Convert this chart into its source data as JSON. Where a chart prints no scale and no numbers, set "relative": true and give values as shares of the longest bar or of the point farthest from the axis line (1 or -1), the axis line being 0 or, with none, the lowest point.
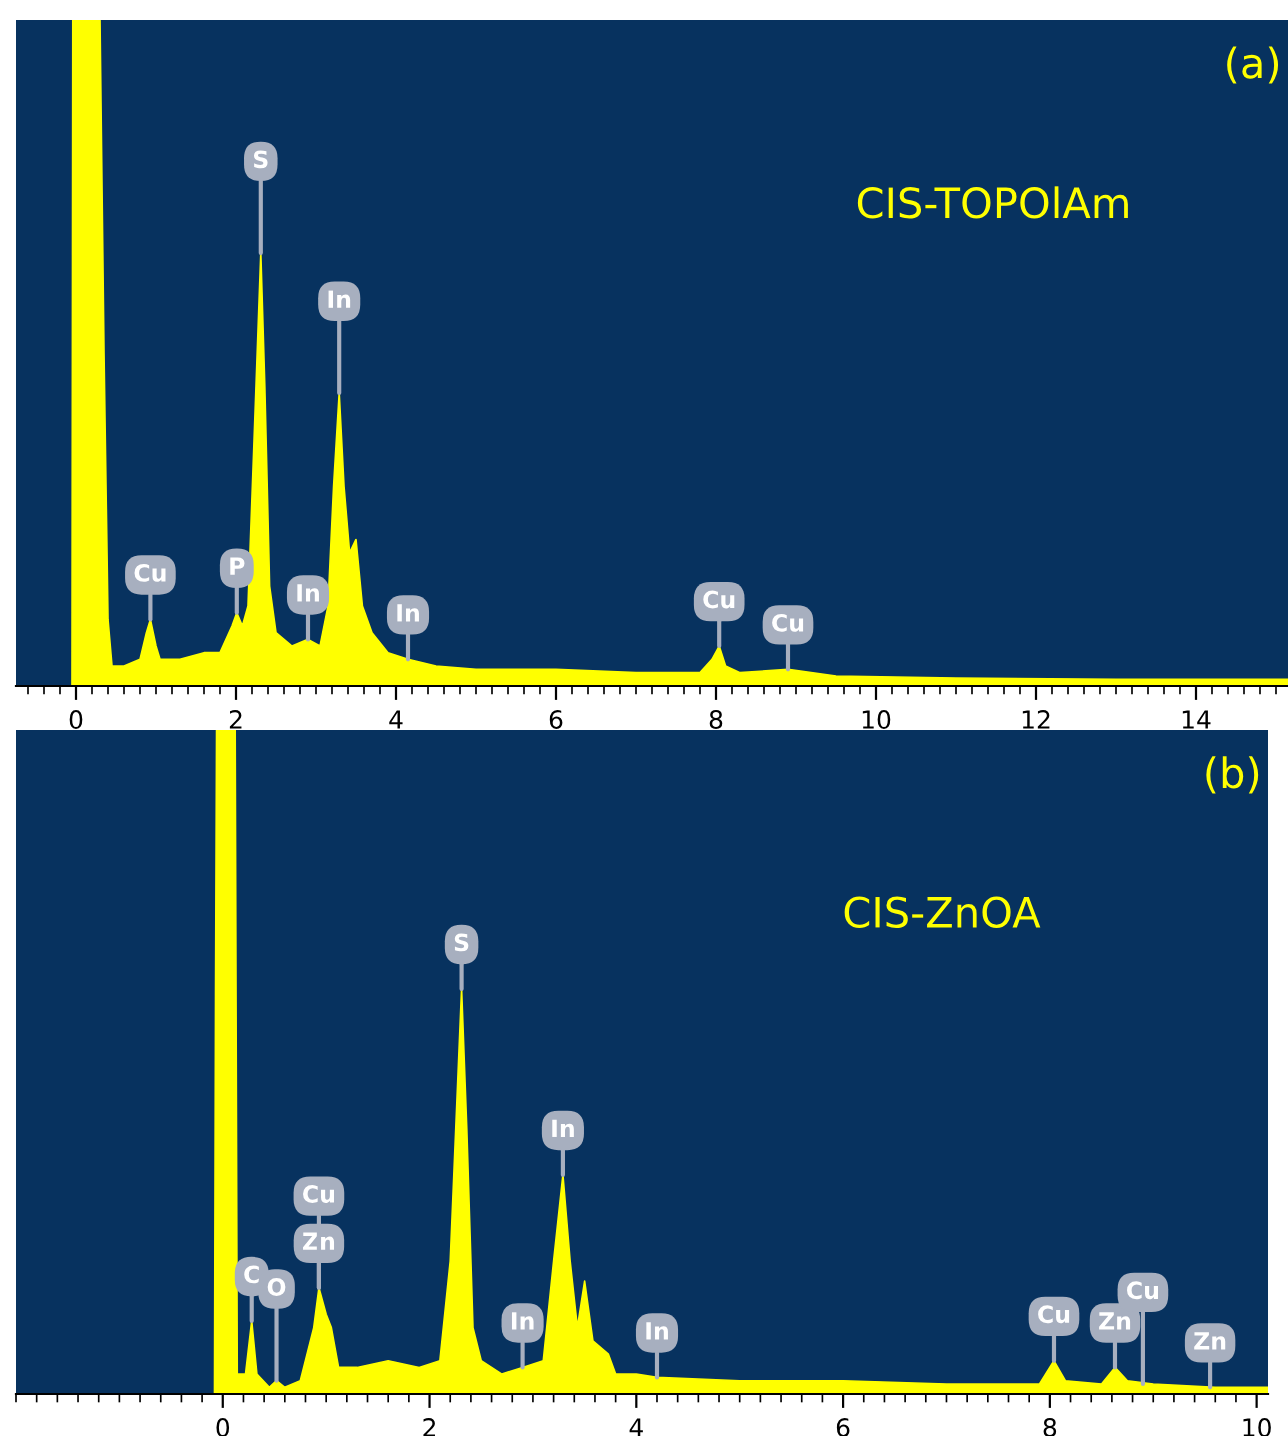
{
  "chart_data": [
    {
      "type": "area",
      "relative": true,
      "color": "#ffff00",
      "xlim": [
        -0.75,
        15.15
      ],
      "xticks": [
        0,
        2,
        4,
        6,
        8,
        10,
        12,
        14
      ],
      "tick_labels": "x",
      "grid": false,
      "legend": false,
      "x": [
        -0.05,
        -0.04,
        0.3,
        0.35,
        0.4,
        0.45,
        0.6,
        0.8,
        0.88,
        0.93,
        1.0,
        1.05,
        1.3,
        1.6,
        1.8,
        1.95,
        2.01,
        2.08,
        2.15,
        2.22,
        2.31,
        2.36,
        2.42,
        2.5,
        2.7,
        2.9,
        3.05,
        3.15,
        3.22,
        3.29,
        3.35,
        3.42,
        3.5,
        3.58,
        3.7,
        3.9,
        4.15,
        4.5,
        5,
        6,
        7,
        7.8,
        7.95,
        8.04,
        8.12,
        8.3,
        8.9,
        9.5,
        11,
        13,
        15.15
      ],
      "values": [
        0,
        1,
        1,
        0.5,
        0.1,
        0.03,
        0.03,
        0.04,
        0.08,
        0.1,
        0.06,
        0.04,
        0.04,
        0.05,
        0.05,
        0.09,
        0.11,
        0.09,
        0.12,
        0.35,
        0.65,
        0.45,
        0.15,
        0.08,
        0.06,
        0.07,
        0.06,
        0.12,
        0.3,
        0.44,
        0.3,
        0.2,
        0.22,
        0.12,
        0.08,
        0.05,
        0.04,
        0.03,
        0.025,
        0.025,
        0.02,
        0.02,
        0.04,
        0.06,
        0.03,
        0.02,
        0.025,
        0.015,
        0.012,
        0.01,
        0.01
      ],
      "annotations": [
        "(a)",
        "CIS-TOPOlAm",
        {
          "text": "Cu",
          "x": 0.93,
          "y": 0.1
        },
        {
          "text": "P",
          "x": 2.01,
          "y": 0.11
        },
        {
          "text": "S",
          "x": 2.31,
          "y": 0.65
        },
        {
          "text": "In",
          "x": 2.9,
          "y": 0.07
        },
        {
          "text": "In",
          "x": 3.29,
          "y": 0.44
        },
        {
          "text": "In",
          "x": 4.15,
          "y": 0.04
        },
        {
          "text": "Cu",
          "x": 8.04,
          "y": 0.06
        },
        {
          "text": "Cu",
          "x": 8.9,
          "y": 0.025
        }
      ]
    },
    {
      "type": "area",
      "relative": true,
      "color": "#ffff00",
      "xlim": [
        -2.0,
        10.11
      ],
      "xticks": [
        0,
        2,
        4,
        6,
        8,
        10
      ],
      "tick_labels": "x",
      "grid": false,
      "legend": false,
      "x": [
        -0.08,
        -0.07,
        -0.06,
        0.12,
        0.14,
        0.22,
        0.28,
        0.33,
        0.45,
        0.52,
        0.6,
        0.75,
        0.88,
        0.93,
        1.0,
        1.05,
        1.12,
        1.3,
        1.6,
        1.9,
        2.1,
        2.2,
        2.31,
        2.36,
        2.42,
        2.5,
        2.7,
        2.9,
        3.1,
        3.2,
        3.29,
        3.36,
        3.43,
        3.5,
        3.58,
        3.73,
        3.8,
        4.0,
        4.2,
        5,
        6,
        7,
        7.9,
        8.04,
        8.15,
        8.5,
        8.63,
        8.75,
        9,
        9.6,
        10.11
      ],
      "values": [
        0,
        0.6,
        1,
        1,
        0.03,
        0.03,
        0.11,
        0.03,
        0.01,
        0.02,
        0.01,
        0.02,
        0.1,
        0.16,
        0.12,
        0.1,
        0.04,
        0.04,
        0.05,
        0.04,
        0.05,
        0.2,
        0.61,
        0.4,
        0.1,
        0.05,
        0.03,
        0.04,
        0.05,
        0.2,
        0.33,
        0.2,
        0.1,
        0.17,
        0.08,
        0.06,
        0.03,
        0.03,
        0.025,
        0.02,
        0.02,
        0.015,
        0.015,
        0.05,
        0.02,
        0.015,
        0.04,
        0.02,
        0.015,
        0.01,
        0.01
      ],
      "annotations": [
        "(b)",
        "CIS-ZnOA",
        {
          "text": "C",
          "x": 0.28,
          "y": 0.11
        },
        {
          "text": "O",
          "x": 0.52,
          "y": 0.02
        },
        {
          "text": "Zn",
          "x": 0.93,
          "y": 0.16
        },
        {
          "text": "Cu",
          "x": 0.93,
          "y": 0.16
        },
        {
          "text": "S",
          "x": 2.31,
          "y": 0.61
        },
        {
          "text": "In",
          "x": 2.9,
          "y": 0.04
        },
        {
          "text": "In",
          "x": 3.29,
          "y": 0.33
        },
        {
          "text": "In",
          "x": 4.2,
          "y": 0.025
        },
        {
          "text": "Cu",
          "x": 8.04,
          "y": 0.05
        },
        {
          "text": "Zn",
          "x": 8.63,
          "y": 0.04
        },
        {
          "text": "Cu",
          "x": 8.9,
          "y": 0.015
        },
        {
          "text": "Zn",
          "x": 9.55,
          "y": 0.01
        }
      ]
    }
  ]
}
